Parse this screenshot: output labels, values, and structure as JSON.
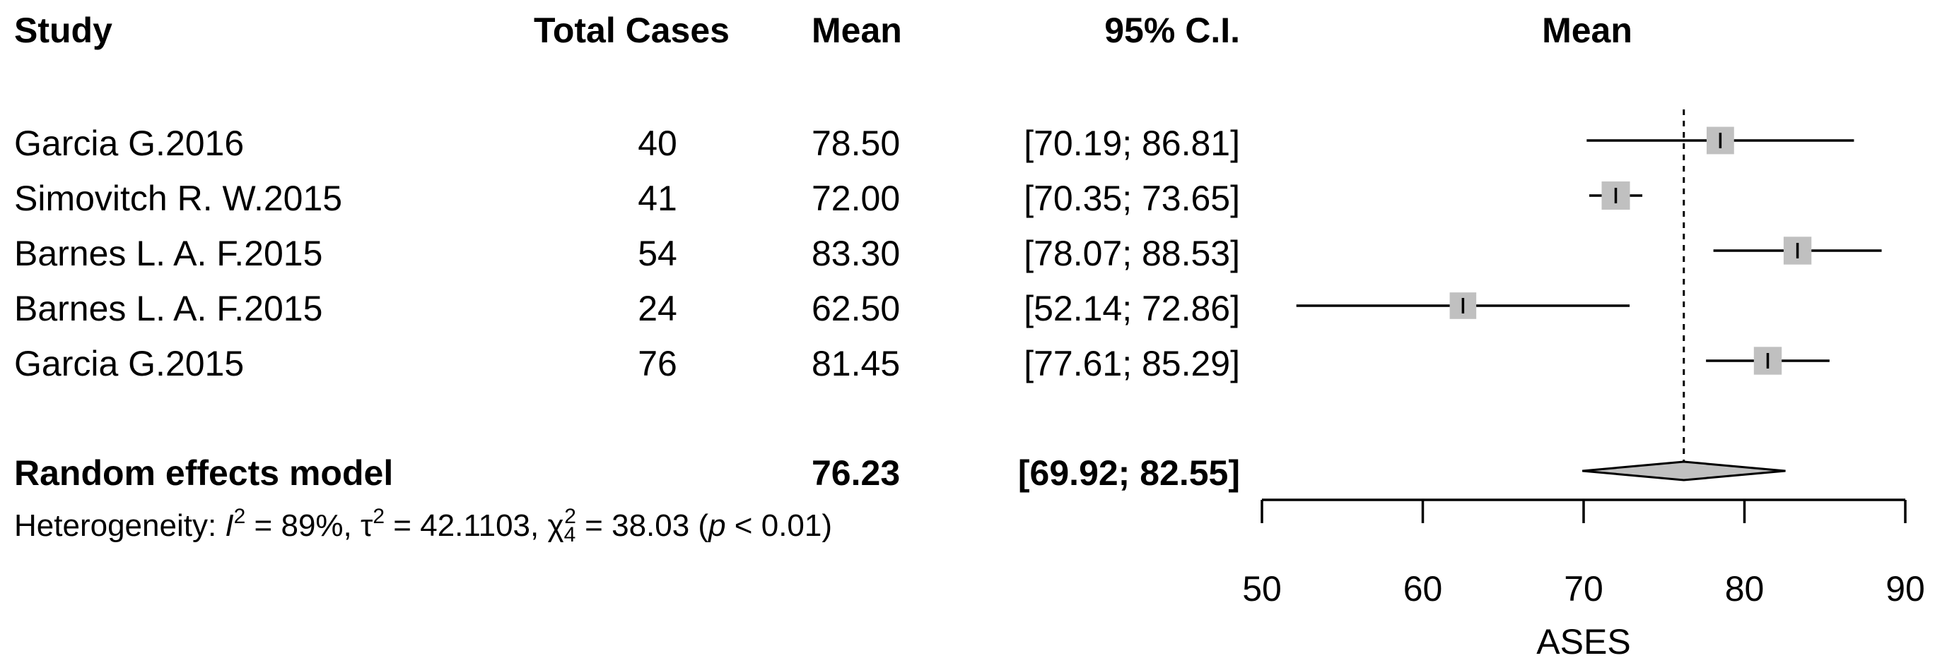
{
  "headers": {
    "study": "Study",
    "total": "Total Cases",
    "mean": "Mean",
    "ci": "95% C.I.",
    "plot": "Mean"
  },
  "rows": [
    {
      "study": "Garcia G.2016",
      "total": "40",
      "mean": "78.50",
      "ci": "[70.19; 86.81]"
    },
    {
      "study": "Simovitch R. W.2015",
      "total": "41",
      "mean": "72.00",
      "ci": "[70.35; 73.65]"
    },
    {
      "study": "Barnes L. A. F.2015",
      "total": "54",
      "mean": "83.30",
      "ci": "[78.07; 88.53]"
    },
    {
      "study": "Barnes L. A. F.2015",
      "total": "24",
      "mean": "62.50",
      "ci": "[52.14; 72.86]"
    },
    {
      "study": "Garcia G.2015",
      "total": "76",
      "mean": "81.45",
      "ci": "[77.61; 85.29]"
    }
  ],
  "summary": {
    "label": "Random effects model",
    "mean": "76.23",
    "ci": "[69.92; 82.55]"
  },
  "heterogeneity": {
    "prefix": "Heterogeneity: ",
    "i_sym": "I",
    "i_sup": "2",
    "i_val": " = 89%, ",
    "tau_sym": "τ",
    "tau_sup": "2",
    "tau_val": " = 42.1103, ",
    "chi_sym": "χ",
    "chi_sub": "4",
    "chi_sup": "2",
    "chi_val": " = 38.03 (",
    "p_sym": "p",
    "p_val": " < 0.01)"
  },
  "chart_data": {
    "type": "forest",
    "xlabel": "ASES",
    "xlim": [
      50,
      90
    ],
    "xticks": [
      50,
      60,
      70,
      80,
      90
    ],
    "reference_line": 76.23,
    "studies": [
      {
        "name": "Garcia G.2016",
        "mean": 78.5,
        "lower": 70.19,
        "upper": 86.81,
        "weight": 0.9
      },
      {
        "name": "Simovitch R. W.2015",
        "mean": 72.0,
        "lower": 70.35,
        "upper": 73.65,
        "weight": 1.0
      },
      {
        "name": "Barnes L. A. F.2015",
        "mean": 83.3,
        "lower": 78.07,
        "upper": 88.53,
        "weight": 0.95
      },
      {
        "name": "Barnes L. A. F.2015",
        "mean": 62.5,
        "lower": 52.14,
        "upper": 72.86,
        "weight": 0.8
      },
      {
        "name": "Garcia G.2015",
        "mean": 81.45,
        "lower": 77.61,
        "upper": 85.29,
        "weight": 0.95
      }
    ],
    "summary": {
      "name": "Random effects model",
      "mean": 76.23,
      "lower": 69.92,
      "upper": 82.55
    },
    "colors": {
      "box": "#c0c0c0",
      "diamond": "#c0c0c0",
      "line": "#000000"
    }
  }
}
